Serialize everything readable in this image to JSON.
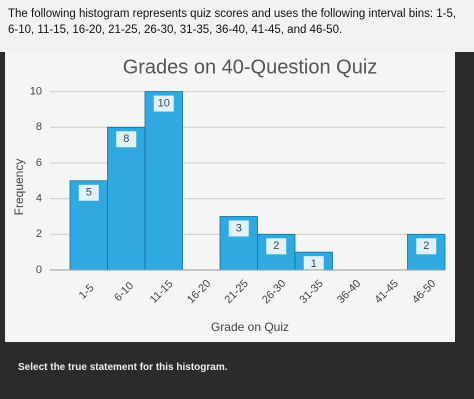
{
  "question": "The following histogram represents quiz scores and uses the following interval bins: 1-5, 6-10, 11-15, 16-20, 21-25, 26-30, 31-35, 36-40, 41-45, and 46-50.",
  "prompt": "Select the true statement for this histogram.",
  "chart_data": {
    "type": "bar",
    "title": "Grades on 40-Question Quiz",
    "x_label": "Grade on Quiz",
    "y_label": "Frequency",
    "categories": [
      "1-5",
      "6-10",
      "11-15",
      "16-20",
      "21-25",
      "26-30",
      "31-35",
      "36-40",
      "41-45",
      "46-50"
    ],
    "values": [
      5,
      8,
      10,
      0,
      3,
      2,
      1,
      0,
      0,
      2
    ],
    "value_labels": [
      "5",
      "8",
      "10",
      null,
      "3",
      "2",
      "1",
      null,
      null,
      "2"
    ],
    "color": "#2fa9e0",
    "ylim": [
      0,
      10.2
    ],
    "yticks": [
      0,
      2,
      4,
      6,
      8,
      10
    ],
    "grid": true
  }
}
